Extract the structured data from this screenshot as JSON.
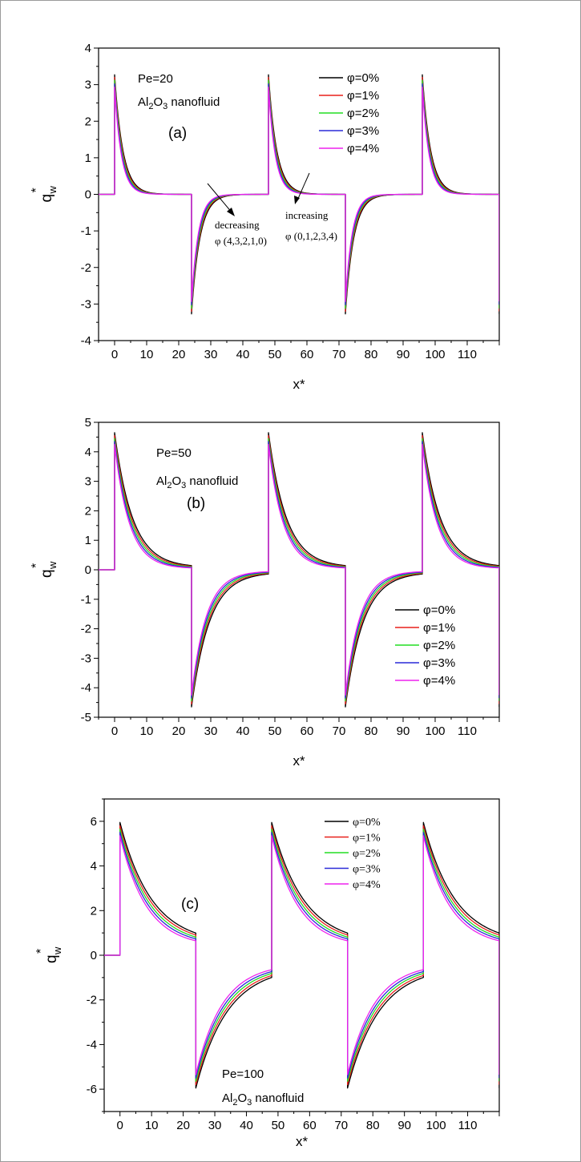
{
  "chart_data": [
    {
      "type": "line",
      "panel_label": "(a)",
      "xlabel": "x*",
      "ylabel": "q*w",
      "xlim": [
        -5,
        120
      ],
      "ylim": [
        -4,
        4
      ],
      "x_ticks": [
        "0",
        "10",
        "20",
        "30",
        "40",
        "50",
        "60",
        "70",
        "80",
        "90",
        "100",
        "110"
      ],
      "y_ticks": [
        "4",
        "3",
        "2",
        "1",
        "0",
        "-1",
        "-2",
        "-3",
        "-4"
      ],
      "annotations": {
        "pe": "Pe=20",
        "fluid": "Al2O3 nanofluid",
        "decreasing": "decreasing",
        "decreasing_phi": "φ (4,3,2,1,0)",
        "increasing": "increasing",
        "increasing_phi": "φ (0,1,2,3,4)"
      },
      "legend_position": "top-right",
      "series": [
        {
          "name": "φ=0%",
          "color": "#000000",
          "peak": 3.27,
          "decay": 2.6,
          "tail": 0.0
        },
        {
          "name": "φ=1%",
          "color": "#e8201a",
          "peak": 3.2,
          "decay": 2.48,
          "tail": 0.0
        },
        {
          "name": "φ=2%",
          "color": "#22dd22",
          "peak": 3.12,
          "decay": 2.36,
          "tail": 0.0
        },
        {
          "name": "φ=3%",
          "color": "#2a2ad8",
          "peak": 3.02,
          "decay": 2.24,
          "tail": 0.0
        },
        {
          "name": "φ=4%",
          "color": "#ee22ee",
          "peak": 2.93,
          "decay": 2.12,
          "tail": 0.0
        }
      ]
    },
    {
      "type": "line",
      "panel_label": "(b)",
      "xlabel": "x*",
      "ylabel": "q*w",
      "xlim": [
        -5,
        120
      ],
      "ylim": [
        -5,
        5
      ],
      "x_ticks": [
        "0",
        "10",
        "20",
        "30",
        "40",
        "50",
        "60",
        "70",
        "80",
        "90",
        "100",
        "110"
      ],
      "y_ticks": [
        "5",
        "4",
        "3",
        "2",
        "1",
        "0",
        "-1",
        "-2",
        "-3",
        "-4",
        "-5"
      ],
      "annotations": {
        "pe": "Pe=50",
        "fluid": "Al2O3 nanofluid"
      },
      "legend_position": "bottom-right",
      "series": [
        {
          "name": "φ=0%",
          "color": "#000000",
          "peak": 4.65,
          "decay": 5.6,
          "tail": 0.08
        },
        {
          "name": "φ=1%",
          "color": "#e8201a",
          "peak": 4.55,
          "decay": 5.35,
          "tail": 0.07
        },
        {
          "name": "φ=2%",
          "color": "#22dd22",
          "peak": 4.45,
          "decay": 5.1,
          "tail": 0.06
        },
        {
          "name": "φ=3%",
          "color": "#2a2ad8",
          "peak": 4.35,
          "decay": 4.85,
          "tail": 0.05
        },
        {
          "name": "φ=4%",
          "color": "#ee22ee",
          "peak": 4.25,
          "decay": 4.6,
          "tail": 0.04
        }
      ]
    },
    {
      "type": "line",
      "panel_label": "(c)",
      "xlabel": "x*",
      "ylabel": "q*w",
      "xlim": [
        -5,
        120
      ],
      "ylim": [
        -7,
        7
      ],
      "x_ticks": [
        "0",
        "10",
        "20",
        "30",
        "40",
        "50",
        "60",
        "70",
        "80",
        "90",
        "100",
        "110"
      ],
      "y_ticks": [
        "6",
        "4",
        "2",
        "0",
        "-2",
        "-4",
        "-6"
      ],
      "annotations": {
        "pe": "Pe=100",
        "fluid": "Al2O3 nanofluid"
      },
      "legend_position": "top-right",
      "series": [
        {
          "name": "φ=0%",
          "color": "#000000",
          "peak": 5.95,
          "decay": 10.0,
          "tail": 0.5
        },
        {
          "name": "φ=1%",
          "color": "#e8201a",
          "peak": 5.8,
          "decay": 9.6,
          "tail": 0.47
        },
        {
          "name": "φ=2%",
          "color": "#22dd22",
          "peak": 5.65,
          "decay": 9.2,
          "tail": 0.43
        },
        {
          "name": "φ=3%",
          "color": "#2a2ad8",
          "peak": 5.5,
          "decay": 8.8,
          "tail": 0.4
        },
        {
          "name": "φ=4%",
          "color": "#ee22ee",
          "peak": 5.35,
          "decay": 8.4,
          "tail": 0.36
        }
      ]
    }
  ]
}
